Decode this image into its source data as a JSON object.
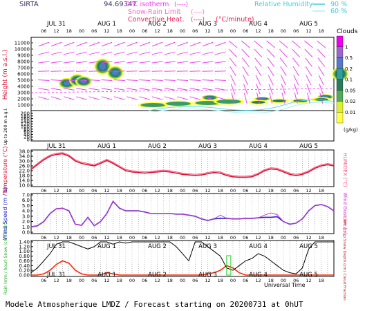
{
  "header": {
    "site": "SIRTA",
    "coords": "94.69347",
    "legend_iso": "0°C isotherm",
    "legend_iso_sym": "(----)",
    "legend_snow": "Snow-Rain Limit",
    "legend_snow_sym": "(----)",
    "legend_conv": "Convective Heat.",
    "legend_conv_sym": "(----)",
    "legend_conv_unit": "(°C/minute)",
    "rh_label": "Relative Humidity",
    "rh_1": "90 %",
    "rh_2": "60 %"
  },
  "time_axis": {
    "day_labels": [
      "JUL 31",
      "AUG  1",
      "AUG  2",
      "AUG  3",
      "AUG  4",
      "AUG  5"
    ],
    "hour_labels": [
      "06",
      "12",
      "18",
      "00",
      "06",
      "12",
      "18",
      "00",
      "06",
      "12",
      "18",
      "00",
      "06",
      "12",
      "18",
      "00",
      "06",
      "12",
      "18",
      "00",
      "06",
      "12",
      "18"
    ],
    "xlabel": "Universal Time"
  },
  "colors": {
    "temperature": "#dd1133",
    "humidex": "#ff4d7a",
    "wind": "#2222cc",
    "gust": "#cc33cc",
    "rain": "#ff2200",
    "snow": "#22cc22",
    "cloud_fraction": "#000000",
    "isotherm": "#ff33ff",
    "rh90": "#55ddee",
    "rh60": "#aaf0f8"
  },
  "panels": {
    "cloud": {
      "ylabel": "Height (m a.s.l.)",
      "ylabel_low": "Up to 200 m a.g.l.",
      "y_ticks_high": [
        "11000",
        "10000",
        "9000",
        "8000",
        "7000",
        "6000",
        "5000",
        "4000",
        "3000",
        "2000",
        "1000"
      ],
      "y_ticks_low": [
        "200",
        "180",
        "160",
        "140",
        "120",
        "100",
        "80",
        "60",
        "40",
        "20",
        "0"
      ],
      "scale_title": "Clouds",
      "scale_ticks": [
        "1",
        "0.5",
        "0.2",
        "0.1",
        "0.05",
        "0.02",
        "0.01"
      ],
      "scale_unit": "(g/kg)",
      "scale_colors": [
        "#ee00ee",
        "#9966cc",
        "#5577cc",
        "#2e9e9e",
        "#2a7a5a",
        "#55aa55",
        "#ddee33",
        "#ffff44"
      ],
      "cloud_patches": [
        {
          "t": 17,
          "h": 4500,
          "r": 400
        },
        {
          "t": 22,
          "h": 5000,
          "r": 450
        },
        {
          "t": 25,
          "h": 4800,
          "r": 380
        },
        {
          "t": 34,
          "h": 7200,
          "r": 600
        },
        {
          "t": 40,
          "h": 6200,
          "r": 500
        },
        {
          "t": 85,
          "h": 2200,
          "r": 200
        },
        {
          "t": 110,
          "h": 2000,
          "r": 150
        },
        {
          "t": 140,
          "h": 2300,
          "r": 200
        },
        {
          "t": 147,
          "h": 6000,
          "r": 500
        }
      ]
    },
    "temperature": {
      "ylabel": "Temperature (°C)",
      "ylabel_right": "HUMIDEX (°C)",
      "ylim": [
        10,
        38
      ],
      "y_ticks": [
        "38.0",
        "34.0",
        "30.0",
        "26.0",
        "22.0",
        "18.0",
        "14.0",
        "10.0"
      ]
    },
    "wind": {
      "ylabel": "Wind Speed (m / s)",
      "ylabel_right": "Wind Gust (m / s)",
      "ylim": [
        0,
        7
      ],
      "y_ticks": [
        "7.0",
        "6.0",
        "5.0",
        "4.0",
        "3.0",
        "2.0",
        "1.0",
        "0.0"
      ]
    },
    "precip": {
      "ylabel": "Rain (mm / hour) Snow (cm / hour)",
      "ylabel_right": "CAPE (J / g) Snow Depth (cm) Cloud Fraction",
      "ylim": [
        0,
        1.4
      ],
      "y_ticks": [
        "1.40",
        "1.20",
        "1.00",
        "0.80",
        "0.60",
        "0.40",
        "0.20",
        "0.00"
      ]
    }
  },
  "chart_data": [
    {
      "type": "line",
      "title": "",
      "xlabel": "Universal Time",
      "ylabel": "Temperature (°C)",
      "ylim": [
        10,
        38
      ],
      "x": [
        0,
        3,
        6,
        9,
        12,
        15,
        18,
        21,
        24,
        27,
        30,
        33,
        36,
        39,
        42,
        45,
        48,
        51,
        54,
        57,
        60,
        63,
        66,
        69,
        72,
        75,
        78,
        81,
        84,
        87,
        90,
        93,
        96,
        99,
        102,
        105,
        108,
        111,
        114,
        117,
        120,
        123,
        126,
        129,
        132,
        135,
        138,
        141,
        144
      ],
      "series": [
        {
          "name": "Temperature",
          "values": [
            23,
            27,
            31,
            34,
            35.5,
            36,
            34,
            30,
            28,
            27,
            26,
            28,
            30.5,
            28,
            25,
            22,
            21,
            20.5,
            20,
            20.5,
            21,
            21.5,
            21,
            20,
            19,
            18.5,
            18,
            18.5,
            19.5,
            20.5,
            20,
            18,
            17,
            16.5,
            16.5,
            17,
            19,
            22,
            23.5,
            23,
            21,
            19,
            18,
            19,
            21,
            24,
            26,
            27,
            26
          ]
        },
        {
          "name": "HUMIDEX",
          "values": [
            24,
            28,
            32,
            35,
            36.5,
            37,
            35,
            31,
            29,
            28,
            27,
            29,
            31.5,
            29,
            26,
            23,
            22,
            21.5,
            21,
            21.5,
            22,
            22.5,
            22,
            21,
            20,
            19.5,
            19,
            19.5,
            20.5,
            21.5,
            21,
            19,
            18,
            17.5,
            17.5,
            18,
            20,
            23,
            24.5,
            24,
            22,
            20,
            19,
            20,
            22,
            25,
            27,
            28,
            27
          ]
        }
      ]
    },
    {
      "type": "line",
      "title": "",
      "xlabel": "Universal Time",
      "ylabel": "Wind Speed (m / s)",
      "ylim": [
        0,
        7
      ],
      "x": [
        0,
        3,
        6,
        9,
        12,
        15,
        18,
        21,
        24,
        27,
        30,
        33,
        36,
        39,
        42,
        45,
        48,
        51,
        54,
        57,
        60,
        63,
        66,
        69,
        72,
        75,
        78,
        81,
        84,
        87,
        90,
        93,
        96,
        99,
        102,
        105,
        108,
        111,
        114,
        117,
        120,
        123,
        126,
        129,
        132,
        135,
        138,
        141,
        144
      ],
      "series": [
        {
          "name": "Wind Speed",
          "values": [
            1,
            1.2,
            2,
            3.5,
            4.4,
            4.5,
            4,
            1.5,
            1.3,
            2.8,
            1.2,
            2,
            3.5,
            5.8,
            4.5,
            4,
            4,
            4,
            3.8,
            3.5,
            3.5,
            3.5,
            3.5,
            3.4,
            3.4,
            3.2,
            3,
            2.5,
            2.2,
            2.5,
            2.6,
            2.6,
            2.5,
            2.5,
            2.6,
            2.6,
            2.7,
            2.8,
            2.8,
            2.9,
            2,
            1.5,
            1.7,
            2.5,
            4,
            5,
            5.2,
            4.8,
            4
          ]
        },
        {
          "name": "Wind Gust",
          "values": [
            1,
            1.2,
            2,
            3.5,
            4.4,
            4.5,
            4,
            1.5,
            1.3,
            2.8,
            1.2,
            2,
            3.5,
            5.8,
            4.5,
            4,
            4,
            4,
            3.8,
            3.5,
            3.5,
            3.5,
            3.5,
            3.4,
            3.4,
            3.2,
            3,
            2.5,
            2.2,
            2.5,
            3.2,
            2.6,
            2.5,
            2.5,
            2.6,
            2.6,
            2.7,
            3.2,
            3.6,
            3.3,
            2,
            1.5,
            1.7,
            2.5,
            4,
            5,
            5.2,
            4.8,
            4
          ]
        }
      ]
    },
    {
      "type": "line",
      "title": "",
      "xlabel": "Universal Time",
      "ylabel": "Rain (mm / hour)",
      "ylim": [
        0,
        1.4
      ],
      "x": [
        0,
        3,
        6,
        9,
        12,
        15,
        18,
        21,
        24,
        27,
        30,
        33,
        36,
        39,
        42,
        45,
        48,
        51,
        54,
        57,
        60,
        63,
        66,
        69,
        72,
        75,
        78,
        81,
        84,
        87,
        90,
        93,
        96,
        99,
        102,
        105,
        108,
        111,
        114,
        117,
        120,
        123,
        126,
        129,
        132,
        135,
        138,
        141,
        144
      ],
      "series": [
        {
          "name": "Rain",
          "values": [
            0,
            0,
            0.05,
            0.2,
            0.45,
            0.6,
            0.5,
            0.2,
            0.05,
            0,
            0,
            0,
            0.1,
            0.05,
            0,
            0,
            0,
            0,
            0,
            0,
            0,
            0,
            0,
            0,
            0,
            0,
            0,
            0,
            0.05,
            0.1,
            0.2,
            0.4,
            0.3,
            0.1,
            0,
            0,
            0,
            0,
            0,
            0,
            0,
            0,
            0,
            0,
            0,
            0,
            0,
            0,
            0
          ]
        },
        {
          "name": "Cloud Fraction",
          "values": [
            0.1,
            0.3,
            0.6,
            0.9,
            1.3,
            1.4,
            1.4,
            1.3,
            1.2,
            1.1,
            1.2,
            1.4,
            1.4,
            1.3,
            1.4,
            1.35,
            1.4,
            1.4,
            1.4,
            1.4,
            1.4,
            1.4,
            1.4,
            1.2,
            0.9,
            0.6,
            1.4,
            1.4,
            1.2,
            1.0,
            0.8,
            0.3,
            0.2,
            0.4,
            0.6,
            0.7,
            0.9,
            0.8,
            0.6,
            0.4,
            0.2,
            0.1,
            0.05,
            0.3,
            1.1,
            1.4,
            1.4,
            1.4,
            1.4
          ]
        }
      ]
    }
  ],
  "footer": {
    "text": "Modele Atmospherique LMDZ / Forecast starting on 20200731 at 0hUT"
  }
}
